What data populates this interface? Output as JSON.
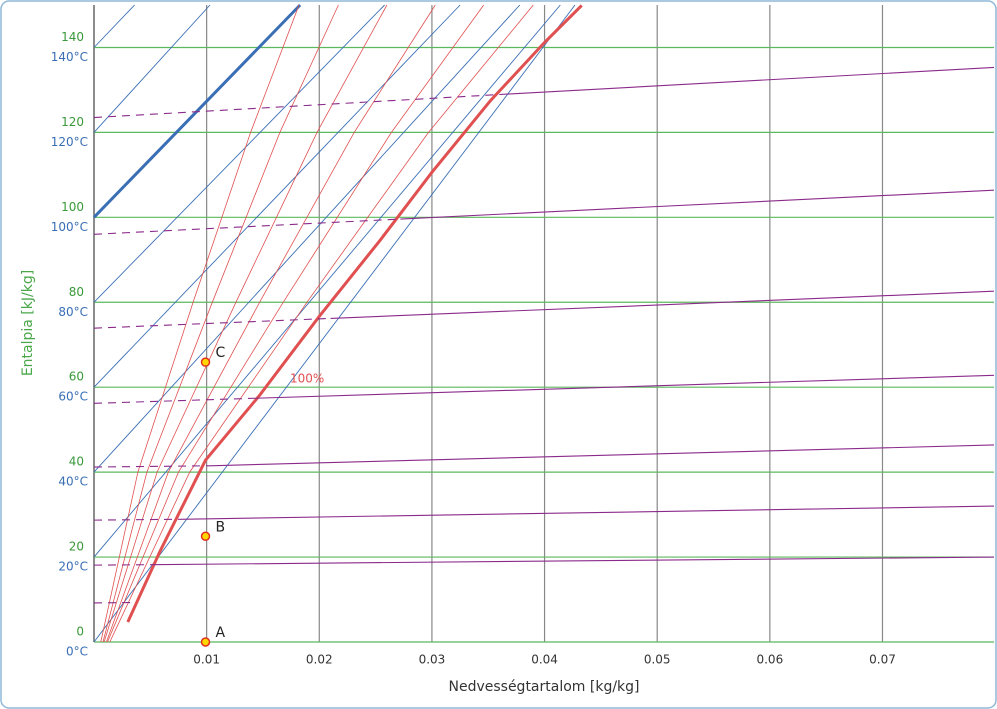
{
  "chart_data": {
    "type": "psychrometric",
    "x_label": "Nedvességtartalom [kg/kg]",
    "y_label": "Entalpia [kJ/kg]",
    "xlim": [
      0,
      0.0799
    ],
    "ylim": [
      0,
      150
    ],
    "xticks": [
      0.01,
      0.02,
      0.03,
      0.04,
      0.05,
      0.06,
      0.07
    ],
    "yticks": [
      0,
      20,
      40,
      60,
      80,
      100,
      120,
      140
    ],
    "grid": true,
    "grid_color": "#888888",
    "enthalpy_color": "#5cb85c",
    "temperature_labels": [
      "0°C",
      "20°C",
      "40°C",
      "60°C",
      "80°C",
      "100°C",
      "120°C",
      "140°C"
    ],
    "temperature_color": "#3a6fb5",
    "temperature_lines": [
      {
        "x": [
          0,
          0.0427
        ],
        "y": [
          0,
          150
        ]
      },
      {
        "x": [
          0,
          0.0414
        ],
        "y": [
          20,
          150
        ]
      },
      {
        "x": [
          0,
          0.0378
        ],
        "y": [
          40,
          150
        ]
      },
      {
        "x": [
          0,
          0.0325
        ],
        "y": [
          60,
          150
        ]
      },
      {
        "x": [
          0,
          0.0258
        ],
        "y": [
          80,
          150
        ]
      },
      {
        "x": [
          0,
          0.0183
        ],
        "y": [
          100,
          150
        ]
      },
      {
        "x": [
          0,
          0.0103
        ],
        "y": [
          120,
          150
        ]
      },
      {
        "x": [
          0,
          0.0036
        ],
        "y": [
          140,
          150
        ]
      }
    ],
    "saturation_curve": {
      "label": "100%",
      "color": "#e05050",
      "x": [
        0.003,
        0.0059,
        0.0099,
        0.0147,
        0.02,
        0.0254,
        0.03,
        0.0352,
        0.04,
        0.0433
      ],
      "y": [
        4.7,
        21.6,
        42.8,
        58.1,
        76.7,
        94.6,
        110.6,
        127.5,
        141.2,
        149.9
      ]
    },
    "rh_color": "#e05050",
    "rh_curves": [
      {
        "x": [
          0.0006,
          0.0039,
          0.0088,
          0.0139,
          0.0182
        ],
        "y": [
          0,
          40,
          80,
          120,
          150
        ]
      },
      {
        "x": [
          0.0008,
          0.0047,
          0.0105,
          0.0165,
          0.0217
        ],
        "y": [
          0,
          40,
          80,
          120,
          150
        ]
      },
      {
        "x": [
          0.0009,
          0.0056,
          0.0126,
          0.0198,
          0.026
        ],
        "y": [
          0,
          40,
          80,
          120,
          150
        ]
      },
      {
        "x": [
          0.0011,
          0.0066,
          0.0147,
          0.0231,
          0.0303
        ],
        "y": [
          0,
          40,
          80,
          120,
          150
        ]
      },
      {
        "x": [
          0.0012,
          0.0075,
          0.0168,
          0.0264,
          0.0346
        ],
        "y": [
          0,
          40,
          80,
          120,
          150
        ]
      },
      {
        "x": [
          0.0014,
          0.0085,
          0.0189,
          0.0297,
          0.039
        ],
        "y": [
          0,
          40,
          80,
          120,
          150
        ]
      }
    ],
    "isotherm_color": "#8b2a8b",
    "isotherms": [
      {
        "x": [
          0,
          0.0036
        ],
        "y": [
          9.2,
          9.3
        ]
      },
      {
        "x": [
          0,
          0.005,
          0.0799
        ],
        "y": [
          18.1,
          18.2,
          20.0
        ]
      },
      {
        "x": [
          0,
          0.0076,
          0.0799
        ],
        "y": [
          28.7,
          28.9,
          32.0
        ]
      },
      {
        "x": [
          0,
          0.0103,
          0.0799
        ],
        "y": [
          41.2,
          41.5,
          46.4
        ]
      },
      {
        "x": [
          0,
          0.0143,
          0.0799
        ],
        "y": [
          56.2,
          57.4,
          62.8
        ]
      },
      {
        "x": [
          0,
          0.021,
          0.0799
        ],
        "y": [
          73.9,
          76.2,
          82.6
        ]
      },
      {
        "x": [
          0,
          0.0272,
          0.0799
        ],
        "y": [
          96.0,
          99.6,
          106.4
        ]
      },
      {
        "x": [
          0,
          0.0365,
          0.0799
        ],
        "y": [
          123.5,
          129.0,
          135.3
        ]
      }
    ],
    "points": [
      {
        "label": "A",
        "x": 0.0099,
        "y": 0
      },
      {
        "label": "B",
        "x": 0.0099,
        "y": 24.9
      },
      {
        "label": "C",
        "x": 0.0099,
        "y": 65.9
      }
    ]
  }
}
